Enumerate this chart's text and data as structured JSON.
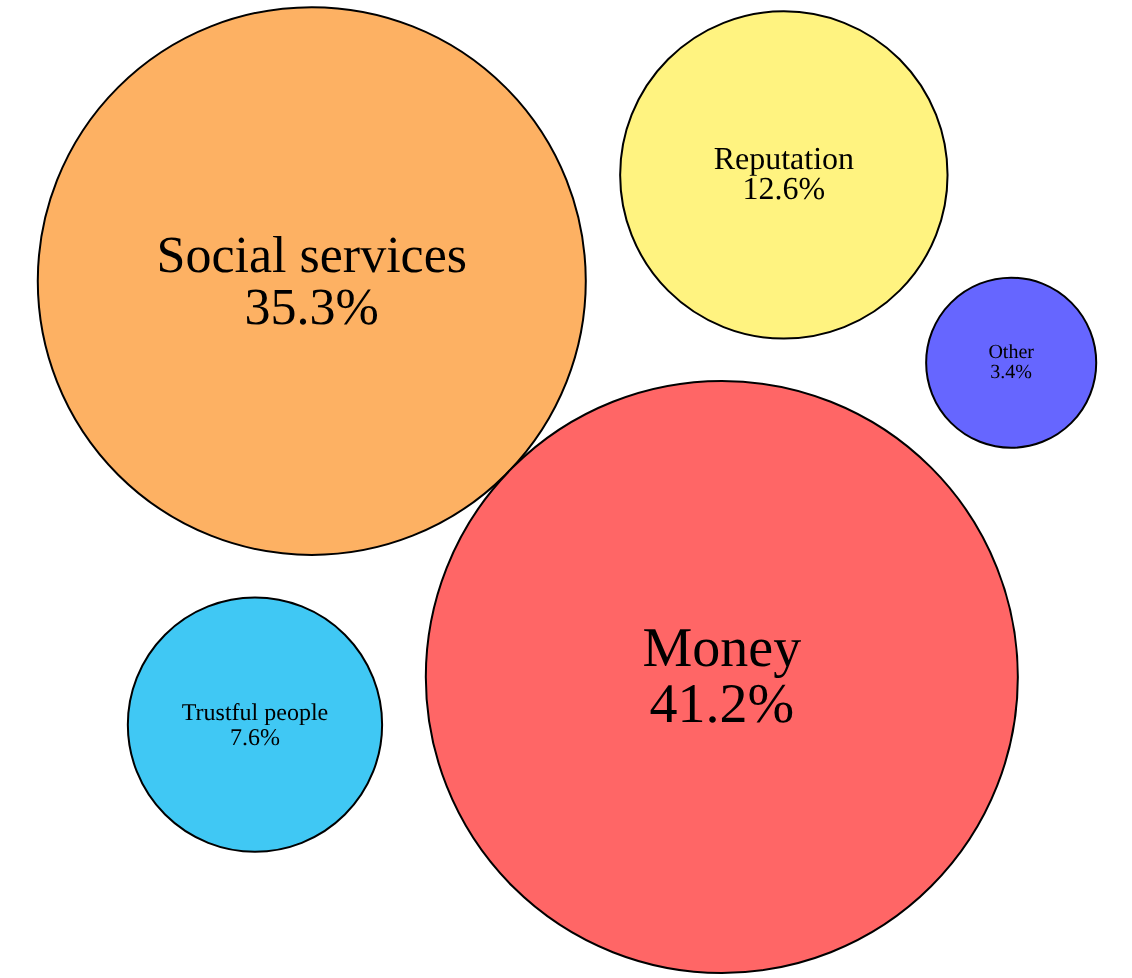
{
  "chart_data": {
    "type": "other",
    "categories": [
      "Social services",
      "Money",
      "Trustful people",
      "Reputation",
      "Other"
    ],
    "values": [
      35.3,
      41.2,
      7.6,
      12.6,
      3.4
    ],
    "value_labels": [
      "35.3%",
      "41.2%",
      "7.6%",
      "12.6%",
      "3.4%"
    ],
    "colors": [
      "#fdb163",
      "#ff6666",
      "#40c8f4",
      "#fff380",
      "#6666ff"
    ]
  }
}
